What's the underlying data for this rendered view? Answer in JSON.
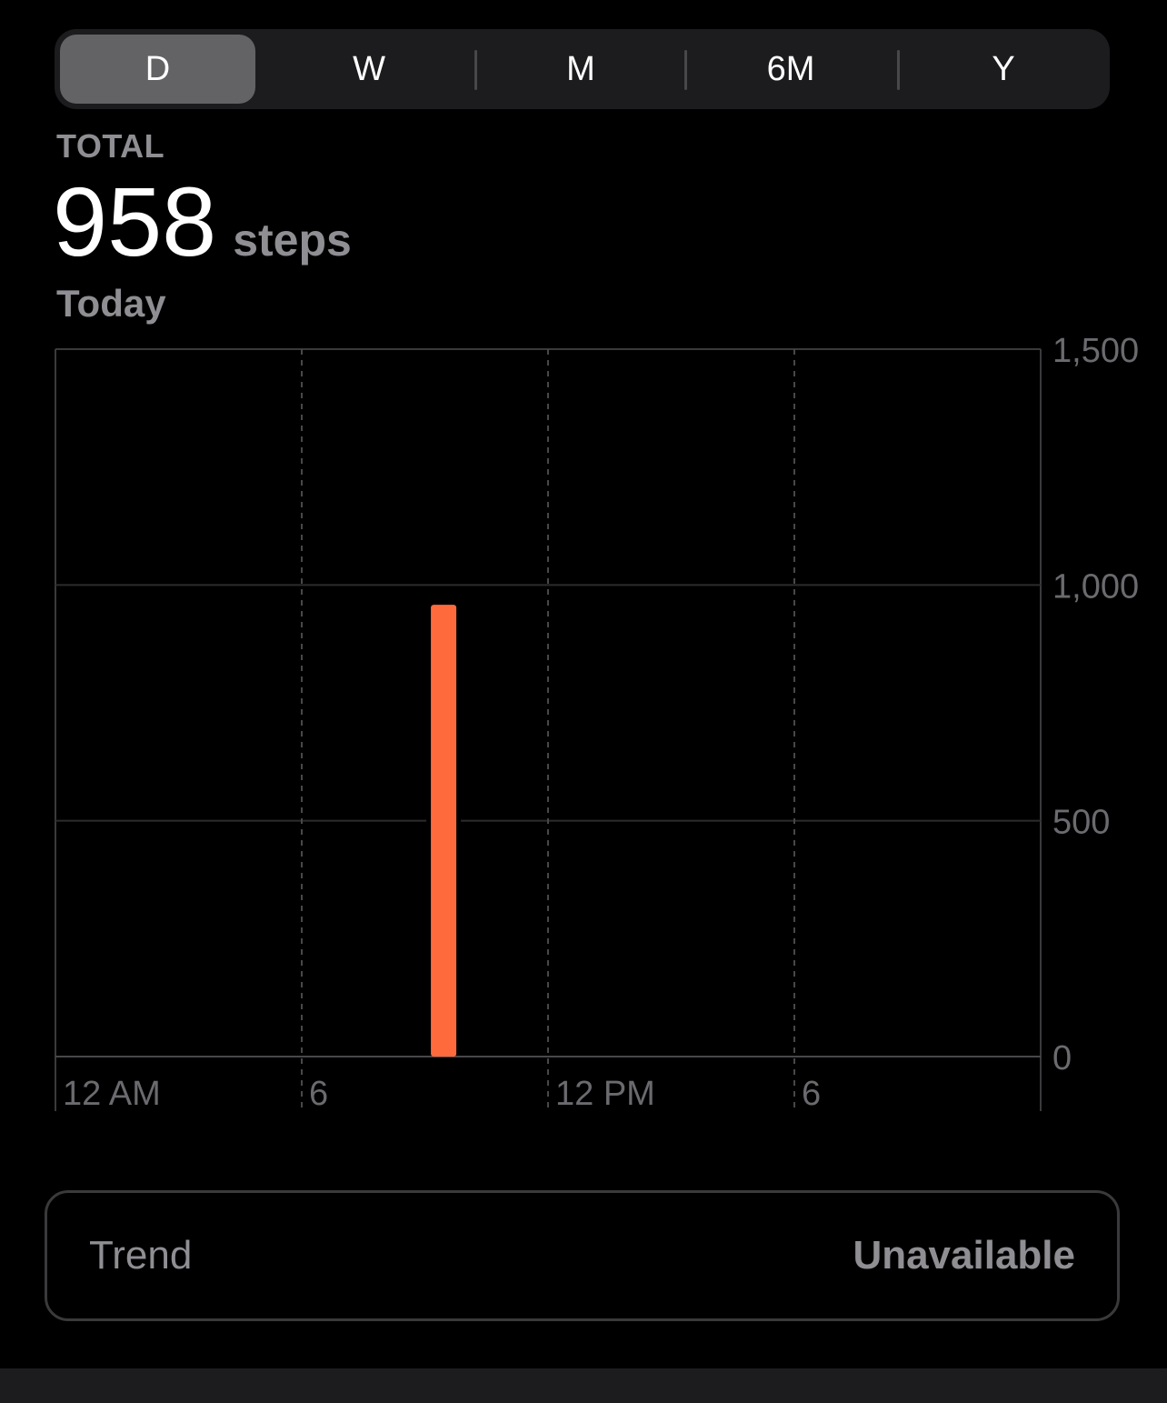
{
  "segments": [
    {
      "label": "D",
      "active": true
    },
    {
      "label": "W",
      "active": false
    },
    {
      "label": "M",
      "active": false
    },
    {
      "label": "6M",
      "active": false
    },
    {
      "label": "Y",
      "active": false
    }
  ],
  "summary": {
    "total_label": "TOTAL",
    "value": "958",
    "unit": "steps",
    "date": "Today"
  },
  "chart_data": {
    "type": "bar",
    "x_ticks": [
      {
        "label": "12 AM",
        "hour": 0
      },
      {
        "label": "6",
        "hour": 6
      },
      {
        "label": "12 PM",
        "hour": 12
      },
      {
        "label": "6",
        "hour": 18
      }
    ],
    "x_range": [
      0,
      24
    ],
    "y_ticks": [
      "1,500",
      "1,000",
      "500",
      "0"
    ],
    "ylim": [
      0,
      1500
    ],
    "bars": [
      {
        "hour": 9,
        "value": 958
      }
    ],
    "bar_color": "#ff6a3d",
    "grid": true
  },
  "trend": {
    "label": "Trend",
    "value": "Unavailable"
  }
}
